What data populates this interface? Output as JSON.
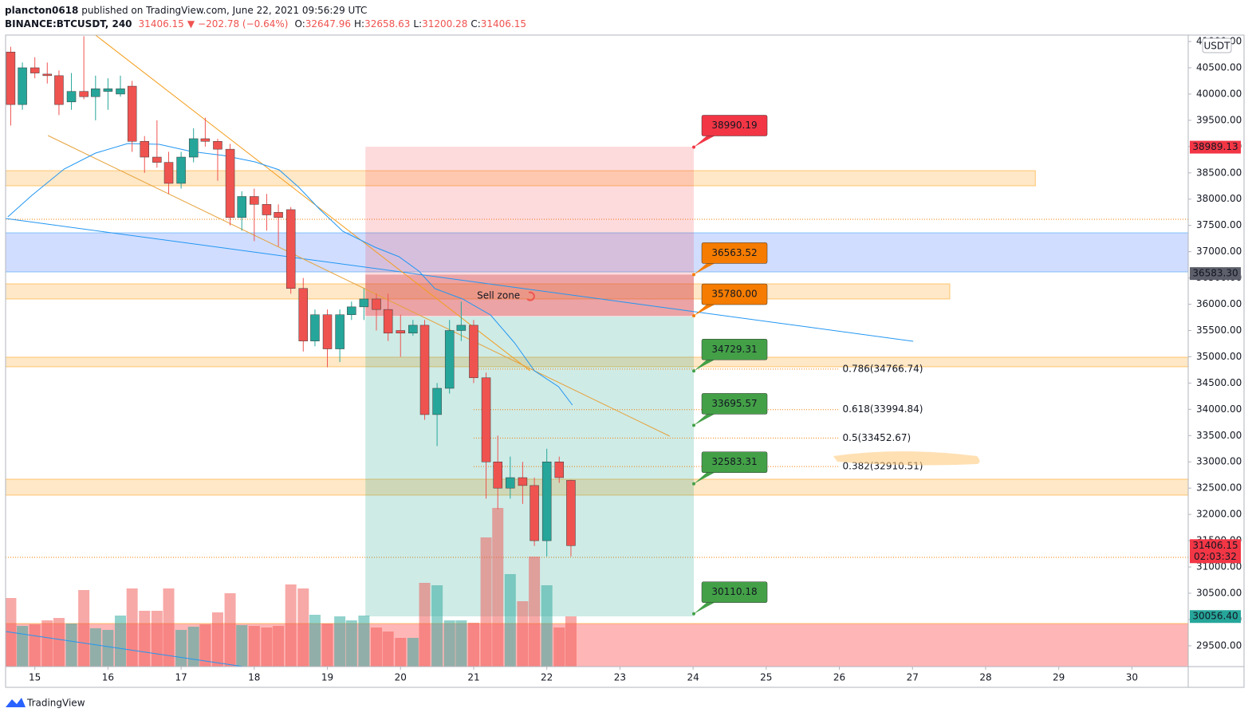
{
  "header": {
    "author": "plancton0618",
    "published": " published on TradingView.com, June 22, 2021 09:56:29 UTC",
    "symbol": "BINANCE:BTCUSDT, 240",
    "last": "31406.15",
    "arrow": "▼",
    "change": "−202.78 (−0.64%)",
    "ohlc": [
      {
        "label": "O:",
        "value": "32647.96"
      },
      {
        "label": "H:",
        "value": "32658.63"
      },
      {
        "label": "L:",
        "value": "31200.28"
      },
      {
        "label": "C:",
        "value": "31406.15"
      }
    ]
  },
  "footer": {
    "brand": "TradingView"
  },
  "chart_data": {
    "type": "candlestick",
    "unit": "USDT",
    "xlim": [
      14.6,
      30.77
    ],
    "ylim": [
      29104,
      41122
    ],
    "vlim": [
      0,
      300
    ],
    "xticks": [
      15,
      16,
      17,
      18,
      19,
      20,
      21,
      22,
      23,
      24,
      25,
      26,
      27,
      28,
      29,
      30
    ],
    "yticks": [
      {
        "value": 29500,
        "label": "29500.00"
      },
      {
        "value": 30000,
        "label": "30000.00"
      },
      {
        "value": 30500,
        "label": "30500.00"
      },
      {
        "value": 31000,
        "label": "31000.00"
      },
      {
        "value": 31500,
        "label": "31500.00"
      },
      {
        "value": 32000,
        "label": "32000.00"
      },
      {
        "value": 32500,
        "label": "32500.00"
      },
      {
        "value": 33000,
        "label": "33000.00"
      },
      {
        "value": 33500,
        "label": "33500.00"
      },
      {
        "value": 34000,
        "label": "34000.00"
      },
      {
        "value": 34500,
        "label": "34500.00"
      },
      {
        "value": 35000,
        "label": "35000.00"
      },
      {
        "value": 35500,
        "label": "35500.00"
      },
      {
        "value": 36000,
        "label": "36000.00"
      },
      {
        "value": 36500,
        "label": "36500.00"
      },
      {
        "value": 37000,
        "label": "37000.00"
      },
      {
        "value": 37500,
        "label": "37500.00"
      },
      {
        "value": 38000,
        "label": "38000.00"
      },
      {
        "value": 38500,
        "label": "38500.00"
      },
      {
        "value": 39000,
        "label": "39000.00"
      },
      {
        "value": 39500,
        "label": "39500.00"
      },
      {
        "value": 40000,
        "label": "40000.00"
      },
      {
        "value": 40500,
        "label": "40500.00"
      },
      {
        "value": 41000,
        "label": "41000.00"
      }
    ],
    "up_color": "#26a69a",
    "down_color": "#ef5350",
    "candles": {
      "x": [
        14.67,
        14.83,
        15,
        15.17,
        15.33,
        15.5,
        15.67,
        15.83,
        16,
        16.17,
        16.33,
        16.5,
        16.67,
        16.83,
        17,
        17.17,
        17.33,
        17.5,
        17.67,
        17.83,
        18,
        18.17,
        18.33,
        18.5,
        18.67,
        18.83,
        19,
        19.17,
        19.33,
        19.5,
        19.67,
        19.83,
        20,
        20.17,
        20.33,
        20.5,
        20.67,
        20.83,
        21,
        21.17,
        21.33,
        21.5,
        21.67,
        21.83,
        22,
        22.17,
        22.33
      ],
      "open": [
        40800,
        39800,
        40500,
        40380,
        40350,
        39850,
        40050,
        39950,
        40050,
        40000,
        40150,
        39100,
        38800,
        38700,
        38300,
        38800,
        39150,
        39100,
        38950,
        37650,
        38050,
        37900,
        37750,
        37800,
        36300,
        35300,
        35800,
        35150,
        35800,
        35950,
        36100,
        35900,
        35500,
        35450,
        35600,
        33900,
        34400,
        35500,
        35600,
        34600,
        33000,
        32500,
        32700,
        32550,
        31500,
        33000,
        32647.96
      ],
      "high": [
        40900,
        40600,
        40700,
        40600,
        40450,
        40400,
        41100,
        40350,
        40300,
        40350,
        40250,
        39200,
        39500,
        38900,
        38900,
        39350,
        39550,
        39150,
        39050,
        38150,
        38200,
        38100,
        37900,
        37850,
        36500,
        35900,
        35900,
        35900,
        36050,
        36300,
        36200,
        36200,
        35800,
        35700,
        35700,
        34500,
        35700,
        36050,
        35700,
        34700,
        33500,
        33100,
        33000,
        32700,
        33250,
        33100,
        32658.63
      ],
      "low": [
        39400,
        39700,
        40300,
        40200,
        39600,
        39700,
        39900,
        39500,
        39700,
        39950,
        38900,
        38500,
        38600,
        38100,
        38200,
        38700,
        39000,
        38350,
        37500,
        37400,
        37200,
        37400,
        37100,
        36200,
        35100,
        35200,
        34800,
        34900,
        35700,
        35700,
        35500,
        35300,
        35000,
        35400,
        33800,
        33300,
        34300,
        35300,
        34500,
        32300,
        32100,
        32300,
        32200,
        31400,
        31200,
        32600,
        31200.28
      ],
      "close": [
        39800,
        40500,
        40400,
        40350,
        39800,
        40050,
        39950,
        40100,
        40100,
        40100,
        39100,
        38800,
        38700,
        38300,
        38800,
        39150,
        39100,
        38950,
        37650,
        38050,
        37900,
        37700,
        37650,
        36300,
        35300,
        35800,
        35150,
        35800,
        35950,
        36100,
        35900,
        35450,
        35450,
        35600,
        33900,
        34400,
        35500,
        35600,
        34600,
        33000,
        32500,
        32700,
        32550,
        31500,
        33000,
        32700,
        31406.15
      ],
      "volume": [
        86,
        51,
        53,
        58,
        61,
        54,
        96,
        48,
        46,
        64,
        98,
        70,
        70,
        98,
        46,
        50,
        53,
        68,
        92,
        52,
        51,
        49,
        51,
        103,
        98,
        65,
        54,
        63,
        58,
        64,
        49,
        44,
        36,
        36,
        105,
        102,
        58,
        58,
        55,
        162,
        199,
        116,
        82,
        138,
        102,
        49,
        63
      ]
    },
    "ma": {
      "color": "#2196f3",
      "x": [
        14.63,
        14.96,
        15.4,
        15.83,
        16.27,
        16.7,
        17.14,
        17.58,
        18.01,
        18.34,
        18.61,
        18.89,
        19.21,
        19.65,
        19.98,
        20.25,
        20.47,
        20.85,
        21.23,
        21.56,
        21.83,
        22.16,
        22.35
      ],
      "y": [
        37662,
        38072,
        38573,
        38876,
        39058,
        39043,
        38906,
        38831,
        38709,
        38558,
        38224,
        37814,
        37389,
        37086,
        36904,
        36630,
        36296,
        36099,
        35796,
        35265,
        34734,
        34430,
        34081
      ]
    },
    "trendlines": [
      {
        "color": "#2196f3",
        "x": [
          14.6,
          27.01
        ],
        "y": [
          37632,
          35295
        ]
      },
      {
        "color": "#2196f3",
        "x": [
          14.6,
          17.85
        ],
        "y": [
          29772,
          29104
        ]
      },
      {
        "color": "#f59d1c",
        "x": [
          15.83,
          21.77
        ],
        "y": [
          41122,
          34733
        ]
      },
      {
        "color": "#e6a23c",
        "x": [
          15.18,
          23.68
        ],
        "y": [
          39210,
          33489
        ]
      }
    ],
    "zones": [
      {
        "color": "#ff9800",
        "y": [
          29104,
          29924
        ],
        "fill": "#ff5252"
      },
      {
        "color": "#2196f3",
        "y": [
          36615,
          37359
        ],
        "fill": "#2962ff"
      },
      {
        "color": "#ff9800",
        "x": [
          14.6,
          28.68
        ],
        "y": [
          38254,
          38542
        ],
        "fill": "#ff9800"
      },
      {
        "color": "#ff9800",
        "x": [
          14.6,
          27.51
        ],
        "y": [
          36100,
          36388
        ],
        "fill": "#ff9800"
      },
      {
        "color": "#ff9800",
        "y": [
          34810,
          34992
        ],
        "fill": "#ff9800"
      },
      {
        "color": "#ff9800",
        "y": [
          32367,
          32670
        ],
        "fill": "#ff9800"
      }
    ],
    "dotted": [
      37617,
      31183
    ],
    "position": {
      "x": [
        19.52,
        24.01
      ],
      "entry": 35766,
      "stop": 38998,
      "target": 30060
    },
    "sell_zone": {
      "x": [
        19.52,
        24.01
      ],
      "y": [
        35780,
        36563.52
      ],
      "label": "Sell zone",
      "label_x": 21.34,
      "label_y": 36160
    },
    "callouts": [
      {
        "value": 38990.19,
        "label": "38990.19",
        "color": "#f23645"
      },
      {
        "value": 36563.52,
        "label": "36563.52",
        "color": "#f57c00"
      },
      {
        "value": 35780,
        "label": "35780.00",
        "color": "#f57c00"
      },
      {
        "value": 34729.31,
        "label": "34729.31",
        "color": "#43a047"
      },
      {
        "value": 33695.57,
        "label": "33695.57",
        "color": "#43a047"
      },
      {
        "value": 32583.31,
        "label": "32583.31",
        "color": "#43a047"
      },
      {
        "value": 30110.18,
        "label": "30110.18",
        "color": "#43a047"
      }
    ],
    "fib": {
      "x": [
        21,
        26
      ],
      "color": "#f57c00",
      "levels": [
        {
          "value": 34766.74,
          "label": "0.786(34766.74)"
        },
        {
          "value": 33994.84,
          "label": "0.618(33994.84)"
        },
        {
          "value": 33452.67,
          "label": "0.5(33452.67)"
        },
        {
          "value": 32910.51,
          "label": "0.382(32910.51)"
        }
      ]
    },
    "price_tags": [
      {
        "value": 38989.13,
        "label": "38989.13",
        "color": "#f23645"
      },
      {
        "value": 36583.3,
        "label": "36583.30",
        "color": "#5d606b"
      },
      {
        "value": 31406.15,
        "label": "31406.15",
        "sub": "02:03:32",
        "color": "#f23645"
      },
      {
        "value": 30056.4,
        "label": "30056.40",
        "color": "#26a69a"
      }
    ]
  }
}
